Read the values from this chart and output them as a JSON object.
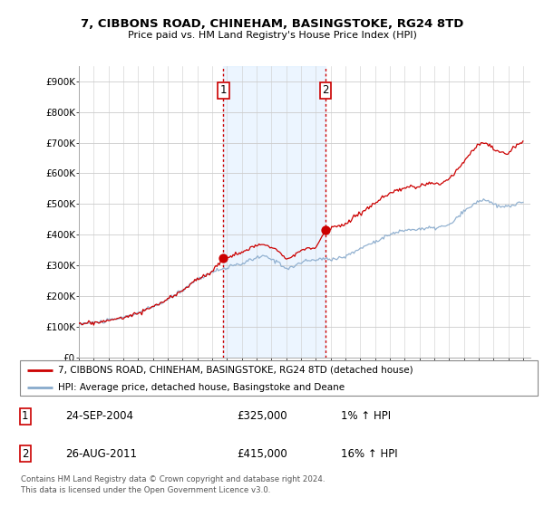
{
  "title": "7, CIBBONS ROAD, CHINEHAM, BASINGSTOKE, RG24 8TD",
  "subtitle": "Price paid vs. HM Land Registry's House Price Index (HPI)",
  "ylabel_ticks": [
    "£0",
    "£100K",
    "£200K",
    "£300K",
    "£400K",
    "£500K",
    "£600K",
    "£700K",
    "£800K",
    "£900K"
  ],
  "ytick_values": [
    0,
    100000,
    200000,
    300000,
    400000,
    500000,
    600000,
    700000,
    800000,
    900000
  ],
  "ylim": [
    0,
    950000
  ],
  "xlim_start": 1995.0,
  "xlim_end": 2025.5,
  "grid_color": "#cccccc",
  "line1_color": "#cc0000",
  "line2_color": "#88aacc",
  "sale1_x": 2004.75,
  "sale1_y": 325000,
  "sale2_x": 2011.65,
  "sale2_y": 415000,
  "vline_color": "#cc0000",
  "vline_style": ":",
  "shade_color": "#ddeeff",
  "legend_line1": "7, CIBBONS ROAD, CHINEHAM, BASINGSTOKE, RG24 8TD (detached house)",
  "legend_line2": "HPI: Average price, detached house, Basingstoke and Deane",
  "note1_num": "1",
  "note1_date": "24-SEP-2004",
  "note1_price": "£325,000",
  "note1_hpi": "1% ↑ HPI",
  "note2_num": "2",
  "note2_date": "26-AUG-2011",
  "note2_price": "£415,000",
  "note2_hpi": "16% ↑ HPI",
  "footer": "Contains HM Land Registry data © Crown copyright and database right 2024.\nThis data is licensed under the Open Government Licence v3.0."
}
